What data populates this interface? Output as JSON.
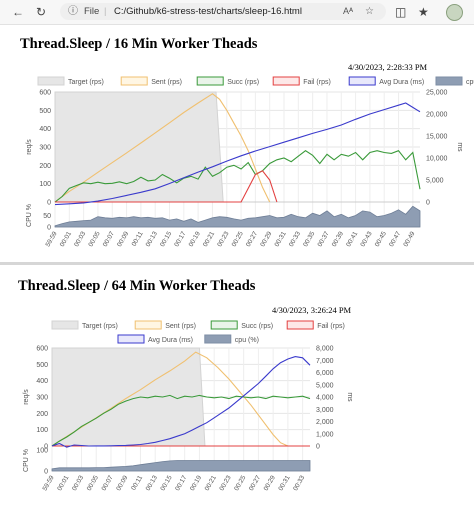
{
  "browser": {
    "back_icon": "back-arrow-icon",
    "refresh_icon": "refresh-icon",
    "info_icon": "info-icon",
    "file_label": "File",
    "url": "C:/Github/k6-stress-test/charts/sleep-16.html",
    "read_aloud_label": "Aᴬ",
    "favorite_icon": "star-icon"
  },
  "charts": [
    {
      "title": "Thread.Sleep / 16 Min Worker Theads",
      "timestamp": "4/30/2023, 2:28:33 PM"
    },
    {
      "title": "Thread.Sleep / 64 Min Worker Theads",
      "timestamp": "4/30/2023, 3:26:24 PM"
    }
  ],
  "chart_data": [
    {
      "type": "line",
      "title": "Thread.Sleep / 16 Min Worker Theads",
      "legend": [
        {
          "name": "Target (rps)",
          "color": "#d3d3d3",
          "fill": "#e6e6e6"
        },
        {
          "name": "Sent (rps)",
          "color": "#f0c070",
          "fill": "#fff6e3"
        },
        {
          "name": "Succ (rps)",
          "color": "#3a9a3a",
          "fill": "#eaf4ea"
        },
        {
          "name": "Fail (rps)",
          "color": "#e34040",
          "fill": "#fde8e8"
        },
        {
          "name": "Avg Dura (ms)",
          "color": "#3a3acc",
          "fill": "#e8e8fb"
        },
        {
          "name": "cpu (%)",
          "color": "#7e8ea5",
          "fill": "#8e9db3"
        }
      ],
      "legend_position": "top",
      "ylabel": "req/s",
      "y2label": "ms",
      "cpu_label": "CPU %",
      "ylim": [
        0,
        600
      ],
      "y2lim": [
        0,
        25000
      ],
      "yticks": [
        0,
        100,
        200,
        300,
        400,
        500,
        600
      ],
      "y2ticks": [
        "0",
        "5,000",
        "10,000",
        "15,000",
        "20,000",
        "25,000"
      ],
      "y2tick_values": [
        0,
        5000,
        10000,
        15000,
        20000,
        25000
      ],
      "cpu_ticks": [
        "0",
        "50"
      ],
      "cpu_tick_values": [
        0,
        50
      ],
      "cpu_lim": [
        0,
        100
      ],
      "xticks": [
        "59:59",
        "00:01",
        "00:03",
        "00:05",
        "00:07",
        "00:09",
        "00:11",
        "00:13",
        "00:15",
        "00:17",
        "00:19",
        "00:21",
        "00:23",
        "00:25",
        "00:27",
        "00:29",
        "00:31",
        "00:33",
        "00:35",
        "00:37",
        "00:39",
        "00:41",
        "00:43",
        "00:45",
        "00:47",
        "00:49"
      ],
      "xmax": 51,
      "grid": true,
      "series": [
        {
          "name": "Target (rps)",
          "x": [
            0,
            45,
            47
          ],
          "y": [
            600,
            600,
            0
          ]
        },
        {
          "name": "Sent (rps)",
          "x": [
            0,
            2,
            4,
            8,
            12,
            16,
            20,
            24,
            28,
            32,
            36,
            40,
            44,
            46,
            48,
            50,
            52,
            54,
            56,
            58,
            60
          ],
          "y": [
            0,
            30,
            58,
            108,
            162,
            215,
            268,
            322,
            377,
            432,
            488,
            540,
            590,
            560,
            500,
            430,
            360,
            280,
            180,
            80,
            0
          ]
        },
        {
          "name": "Succ (rps)",
          "x": [
            0,
            2,
            4,
            6,
            8,
            10,
            12,
            14,
            16,
            18,
            20,
            22,
            24,
            26,
            28,
            30,
            32,
            34,
            36,
            38,
            40,
            42,
            44,
            46,
            48,
            50,
            52,
            54,
            56,
            58,
            60,
            62,
            64,
            66,
            68,
            70,
            72,
            74,
            76,
            78,
            80,
            82,
            84,
            86,
            88,
            90,
            92,
            94,
            96,
            98,
            100,
            102
          ],
          "y": [
            0,
            30,
            75,
            90,
            105,
            100,
            108,
            100,
            102,
            110,
            100,
            112,
            135,
            115,
            120,
            150,
            130,
            105,
            130,
            140,
            125,
            190,
            140,
            160,
            190,
            200,
            180,
            215,
            150,
            170,
            210,
            230,
            240,
            220,
            250,
            280,
            255,
            210,
            260,
            230,
            260,
            250,
            270,
            230,
            270,
            280,
            270,
            265,
            280,
            230,
            270,
            70
          ]
        },
        {
          "name": "Fail (rps)",
          "x": [
            0,
            52,
            56,
            58,
            60,
            62
          ],
          "y": [
            0,
            0,
            150,
            170,
            120,
            0
          ]
        },
        {
          "name": "Avg Dura (ms)",
          "x": [
            0,
            4,
            8,
            12,
            16,
            20,
            24,
            28,
            32,
            36,
            40,
            44,
            48,
            52,
            56,
            60,
            64,
            68,
            72,
            76,
            80,
            84,
            88,
            92,
            96,
            98,
            100,
            102
          ],
          "y": [
            -600,
            -400,
            -200,
            200,
            800,
            1500,
            2200,
            3000,
            4200,
            5500,
            6800,
            8000,
            9300,
            10500,
            11600,
            12600,
            13600,
            14600,
            15600,
            16500,
            17500,
            18800,
            20000,
            21000,
            22000,
            22500,
            21500,
            20500
          ]
        },
        {
          "name": "cpu (%)",
          "x": [
            0,
            2,
            4,
            6,
            8,
            10,
            12,
            14,
            16,
            18,
            20,
            22,
            24,
            26,
            28,
            30,
            32,
            34,
            36,
            38,
            40,
            42,
            44,
            46,
            48,
            50,
            52,
            54,
            56,
            58,
            60,
            62,
            64,
            66,
            68,
            70,
            72,
            74,
            76,
            78,
            80,
            82,
            84,
            86,
            88,
            90,
            92,
            94,
            96,
            98,
            100,
            102
          ],
          "y": [
            5,
            15,
            22,
            25,
            28,
            30,
            45,
            40,
            38,
            42,
            40,
            45,
            40,
            42,
            38,
            40,
            30,
            35,
            25,
            35,
            20,
            30,
            40,
            45,
            42,
            35,
            30,
            38,
            40,
            45,
            50,
            40,
            42,
            55,
            45,
            40,
            60,
            50,
            70,
            45,
            55,
            40,
            50,
            70,
            65,
            45,
            50,
            60,
            75,
            55,
            90,
            70
          ]
        }
      ]
    },
    {
      "type": "line",
      "title": "Thread.Sleep / 64 Min Worker Theads",
      "legend": [
        {
          "name": "Target (rps)",
          "color": "#d3d3d3",
          "fill": "#e6e6e6"
        },
        {
          "name": "Sent (rps)",
          "color": "#f0c070",
          "fill": "#fff6e3"
        },
        {
          "name": "Succ (rps)",
          "color": "#3a9a3a",
          "fill": "#eaf4ea"
        },
        {
          "name": "Fail (rps)",
          "color": "#e34040",
          "fill": "#fde8e8"
        },
        {
          "name": "Avg Dura (ms)",
          "color": "#3a3acc",
          "fill": "#e8e8fb"
        },
        {
          "name": "cpu (%)",
          "color": "#7e8ea5",
          "fill": "#8e9db3"
        }
      ],
      "legend_position": "top",
      "ylabel": "req/s",
      "y2label": "ms",
      "cpu_label": "CPU %",
      "ylim": [
        0,
        600
      ],
      "y2lim": [
        0,
        8000
      ],
      "yticks": [
        0,
        100,
        200,
        300,
        400,
        500,
        600
      ],
      "y2ticks": [
        "0",
        "1,000",
        "2,000",
        "3,000",
        "4,000",
        "5,000",
        "6,000",
        "7,000",
        "8,000"
      ],
      "y2tick_values": [
        0,
        1000,
        2000,
        3000,
        4000,
        5000,
        6000,
        7000,
        8000
      ],
      "cpu_ticks": [
        "0",
        "100"
      ],
      "cpu_tick_values": [
        0,
        100
      ],
      "cpu_lim": [
        0,
        100
      ],
      "xticks": [
        "59:59",
        "00:01",
        "00:03",
        "00:05",
        "00:07",
        "00:09",
        "00:11",
        "00:13",
        "00:15",
        "00:17",
        "00:19",
        "00:21",
        "00:23",
        "00:25",
        "00:27",
        "00:29",
        "00:31",
        "00:33"
      ],
      "xmax": 35,
      "grid": true,
      "series": [
        {
          "name": "Target (rps)",
          "x": [
            0,
            40,
            41.5
          ],
          "y": [
            600,
            600,
            0
          ]
        },
        {
          "name": "Sent (rps)",
          "x": [
            0,
            2,
            4,
            8,
            12,
            16,
            20,
            24,
            28,
            32,
            36,
            39,
            42,
            45,
            48,
            51,
            54,
            57,
            60,
            62,
            64
          ],
          "y": [
            0,
            30,
            58,
            115,
            172,
            230,
            290,
            345,
            405,
            460,
            520,
            575,
            540,
            480,
            410,
            330,
            250,
            160,
            70,
            20,
            0
          ]
        },
        {
          "name": "Succ (rps)",
          "x": [
            0,
            2,
            4,
            6,
            8,
            10,
            12,
            14,
            16,
            18,
            20,
            22,
            24,
            26,
            28,
            30,
            32,
            34,
            36,
            38,
            40,
            42,
            44,
            46,
            48,
            50,
            52,
            54,
            56,
            58,
            60,
            62,
            64,
            66,
            68,
            70
          ],
          "y": [
            0,
            30,
            55,
            85,
            120,
            145,
            170,
            200,
            225,
            255,
            275,
            290,
            300,
            295,
            305,
            300,
            310,
            290,
            305,
            300,
            310,
            300,
            295,
            300,
            290,
            305,
            300,
            295,
            300,
            290,
            305,
            300,
            295,
            300,
            305,
            290
          ]
        },
        {
          "name": "Fail (rps)",
          "x": [
            0,
            70
          ],
          "y": [
            0,
            0
          ]
        },
        {
          "name": "Avg Dura (ms)",
          "x": [
            0,
            2,
            4,
            6,
            8,
            10,
            12,
            14,
            16,
            18,
            20,
            22,
            24,
            26,
            28,
            30,
            32,
            34,
            36,
            38,
            40,
            42,
            44,
            46,
            48,
            50,
            52,
            54,
            56,
            58,
            60,
            62,
            64,
            66,
            68,
            70
          ],
          "y": [
            0,
            200,
            -100,
            80,
            40,
            0,
            10,
            10,
            20,
            30,
            50,
            80,
            120,
            200,
            300,
            450,
            600,
            800,
            1000,
            1300,
            1600,
            1900,
            2300,
            2700,
            3100,
            3600,
            4100,
            4600,
            5100,
            5700,
            6300,
            6800,
            7100,
            7300,
            7200,
            6600
          ]
        },
        {
          "name": "cpu (%)",
          "x": [
            0,
            2,
            4,
            6,
            8,
            10,
            12,
            14,
            16,
            18,
            20,
            22,
            24,
            26,
            28,
            30,
            32,
            34,
            36,
            38,
            40,
            42,
            44,
            46,
            48,
            50,
            52,
            54,
            56,
            58,
            60,
            62,
            64,
            66,
            68,
            70
          ],
          "y": [
            10,
            15,
            15,
            15,
            15,
            15,
            16,
            16,
            18,
            20,
            22,
            25,
            30,
            35,
            40,
            45,
            48,
            50,
            50,
            50,
            50,
            50,
            50,
            50,
            50,
            50,
            50,
            50,
            50,
            50,
            50,
            50,
            50,
            50,
            50,
            50
          ]
        }
      ]
    }
  ]
}
